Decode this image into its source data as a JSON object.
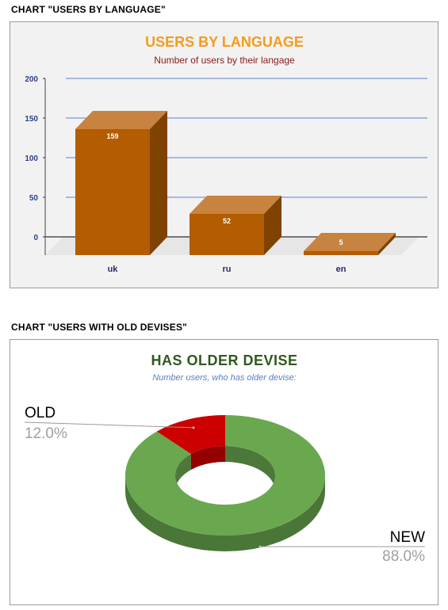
{
  "headers": {
    "chart1": "CHART \"USERS BY LANGUAGE\"",
    "chart2": "CHART \"USERS WITH OLD DEVISES\""
  },
  "chart_data": [
    {
      "type": "bar",
      "title": "USERS BY LANGUAGE",
      "subtitle": "Number of users by their langage",
      "categories": [
        "uk",
        "ru",
        "en"
      ],
      "values": [
        159,
        52,
        5
      ],
      "ylim": [
        0,
        200
      ],
      "yticks": [
        "0",
        "50",
        "100",
        "150",
        "200"
      ],
      "value_labels": [
        "159",
        "52",
        "5"
      ],
      "xlabel": "",
      "ylabel": "",
      "grid": true,
      "colors": {
        "front": "#b35c00",
        "top": "#c98340",
        "side": "#7f4200",
        "grid": "#5b82cf",
        "title": "#f59c1a",
        "subtitle": "#8b1a1a"
      }
    },
    {
      "type": "pie",
      "title": "HAS OLDER DEVISE",
      "subtitle": "Number users, who has older devise:",
      "labels": [
        "OLD",
        "NEW"
      ],
      "values": [
        12.0,
        88.0
      ],
      "value_labels": [
        "12.0%",
        "88.0%"
      ],
      "colors": {
        "OLD": "#cc0000",
        "NEW": "#6aa84f",
        "title": "#2e5a1e",
        "subtitle": "#5b7ec2"
      }
    }
  ]
}
